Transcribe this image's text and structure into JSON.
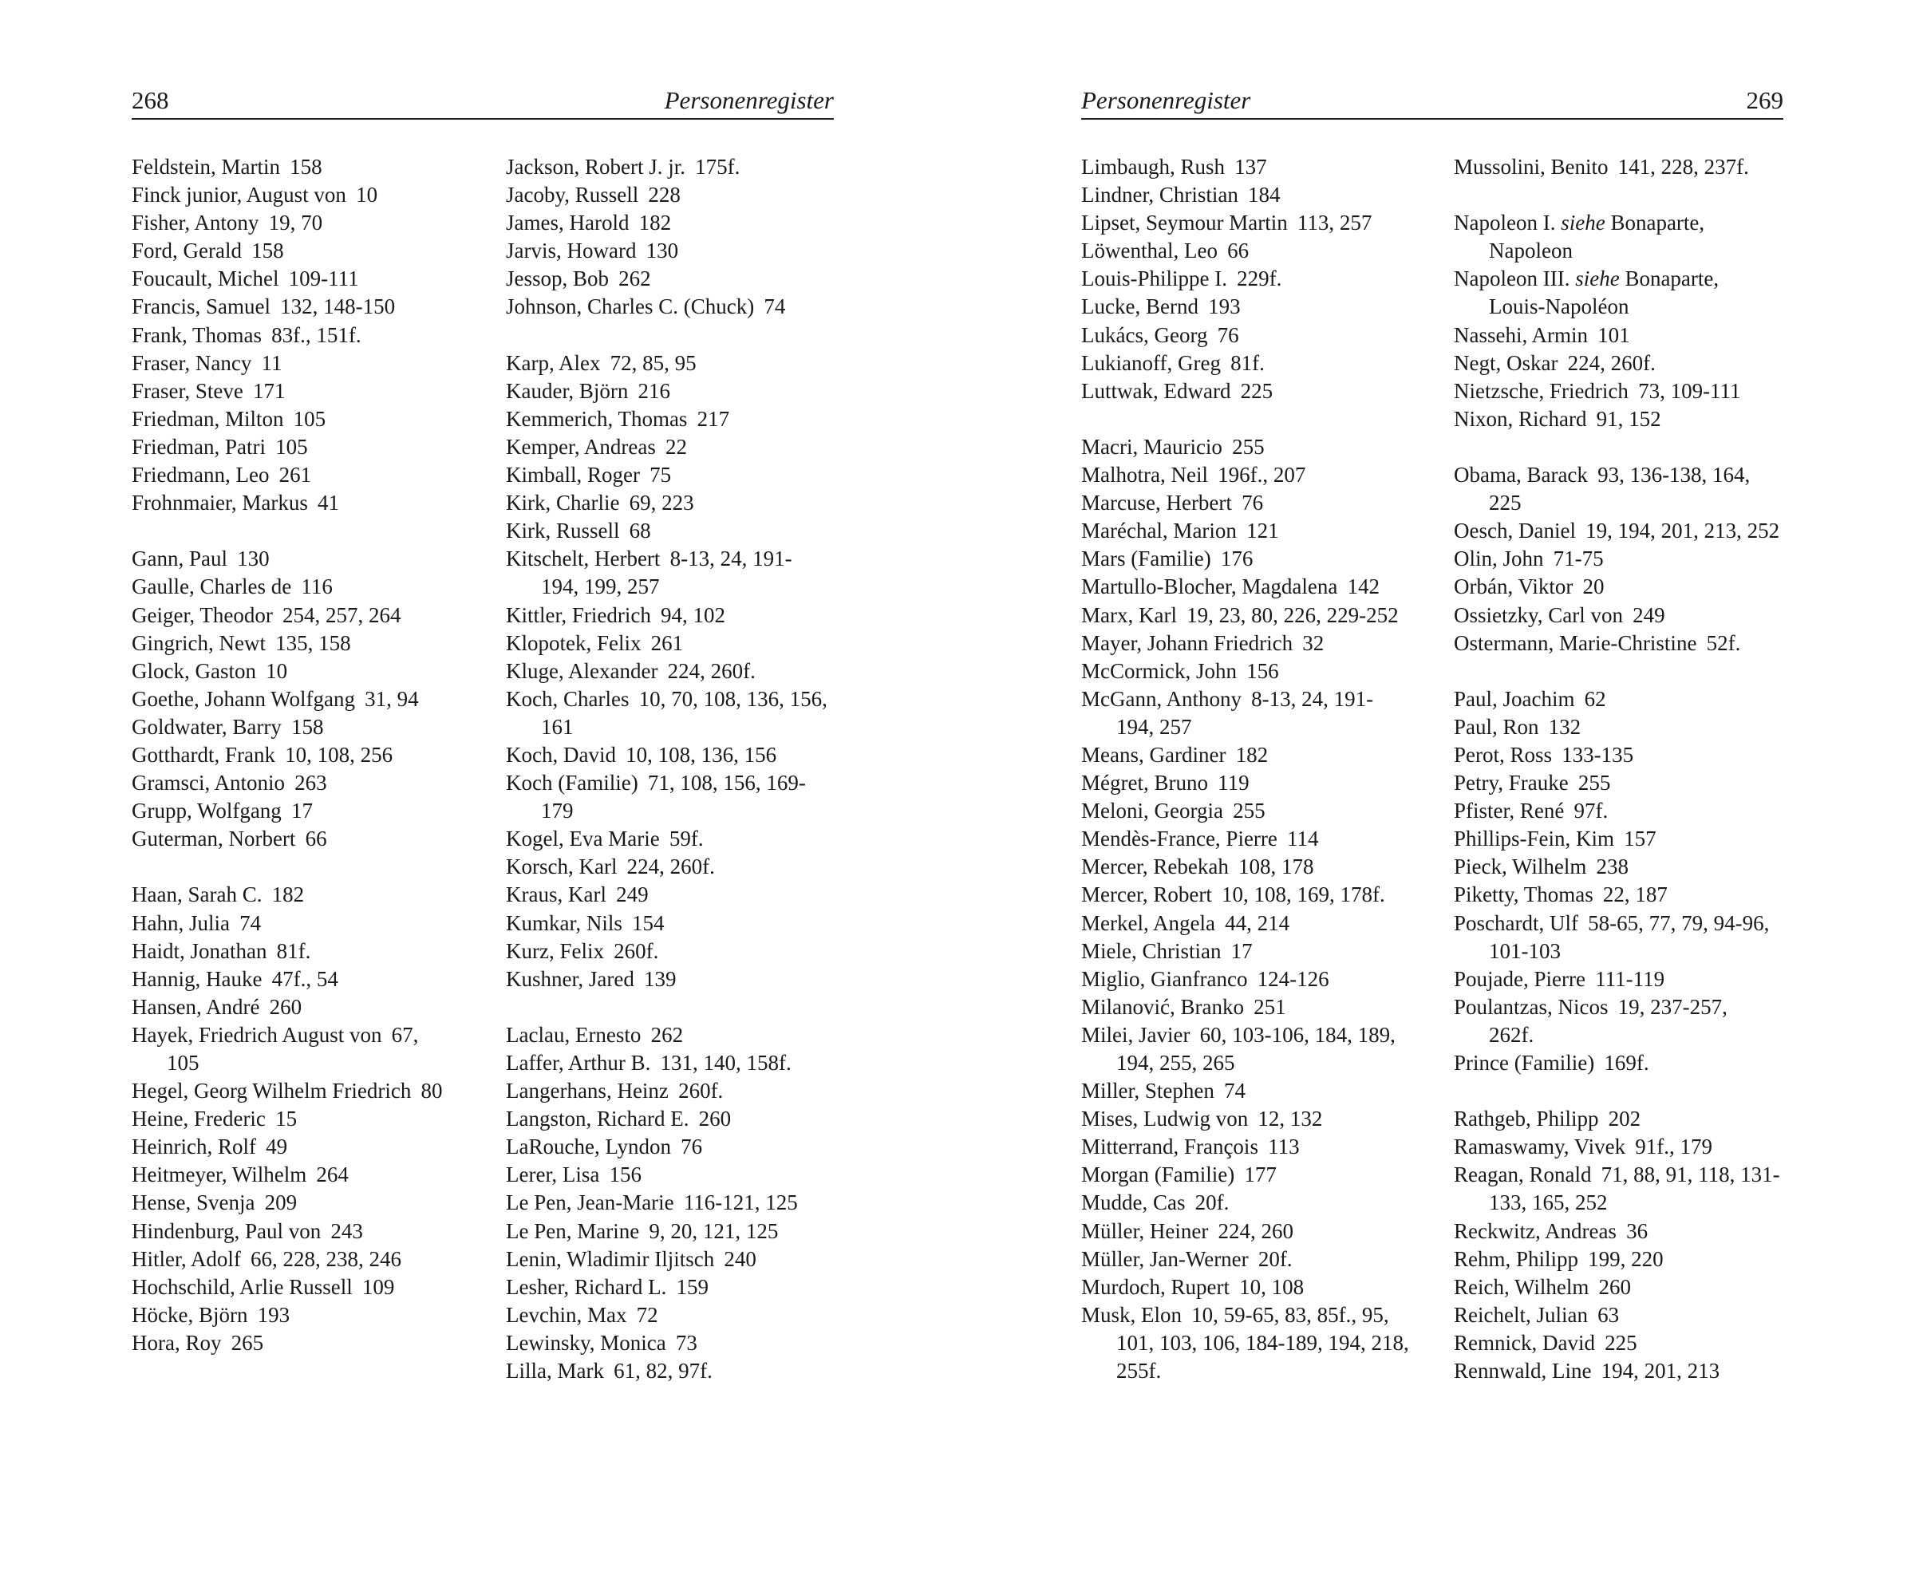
{
  "left_page": {
    "number": "268",
    "title": "Personenregister"
  },
  "right_page": {
    "number": "269",
    "title": "Personenregister"
  },
  "columns": [
    [
      [
        {
          "name": "Feldstein, Martin",
          "pages": "158"
        },
        {
          "name": "Finck junior, August von",
          "pages": "10"
        },
        {
          "name": "Fisher, Antony",
          "pages": "19, 70"
        },
        {
          "name": "Ford, Gerald",
          "pages": "158"
        },
        {
          "name": "Foucault, Michel",
          "pages": "109-111"
        },
        {
          "name": "Francis, Samuel",
          "pages": "132, 148-150"
        },
        {
          "name": "Frank, Thomas",
          "pages": "83f., 151f."
        },
        {
          "name": "Fraser, Nancy",
          "pages": "11"
        },
        {
          "name": "Fraser, Steve",
          "pages": "171"
        },
        {
          "name": "Friedman, Milton",
          "pages": "105"
        },
        {
          "name": "Friedman, Patri",
          "pages": "105"
        },
        {
          "name": "Friedmann, Leo",
          "pages": "261"
        },
        {
          "name": "Frohnmaier, Markus",
          "pages": "41"
        }
      ],
      [
        {
          "name": "Gann, Paul",
          "pages": "130"
        },
        {
          "name": "Gaulle, Charles de",
          "pages": "116"
        },
        {
          "name": "Geiger, Theodor",
          "pages": "254, 257, 264"
        },
        {
          "name": "Gingrich, Newt",
          "pages": "135, 158"
        },
        {
          "name": "Glock, Gaston",
          "pages": "10"
        },
        {
          "name": "Goethe, Johann Wolfgang",
          "pages": "31, 94"
        },
        {
          "name": "Goldwater, Barry",
          "pages": "158"
        },
        {
          "name": "Gotthardt, Frank",
          "pages": "10, 108, 256"
        },
        {
          "name": "Gramsci, Antonio",
          "pages": "263"
        },
        {
          "name": "Grupp, Wolfgang",
          "pages": "17"
        },
        {
          "name": "Guterman, Norbert",
          "pages": "66"
        }
      ],
      [
        {
          "name": "Haan, Sarah C.",
          "pages": "182"
        },
        {
          "name": "Hahn, Julia",
          "pages": "74"
        },
        {
          "name": "Haidt, Jonathan",
          "pages": "81f."
        },
        {
          "name": "Hannig, Hauke",
          "pages": "47f., 54"
        },
        {
          "name": "Hansen, André",
          "pages": "260"
        },
        {
          "name": "Hayek, Friedrich August von",
          "pages": "67,",
          "cont": "105"
        },
        {
          "name": "Hegel, Georg Wilhelm Friedrich",
          "pages": "80"
        },
        {
          "name": "Heine, Frederic",
          "pages": "15"
        },
        {
          "name": "Heinrich, Rolf",
          "pages": "49"
        },
        {
          "name": "Heitmeyer, Wilhelm",
          "pages": "264"
        },
        {
          "name": "Hense, Svenja",
          "pages": "209"
        },
        {
          "name": "Hindenburg, Paul von",
          "pages": "243"
        },
        {
          "name": "Hitler, Adolf",
          "pages": "66, 228, 238, 246"
        },
        {
          "name": "Hochschild, Arlie Russell",
          "pages": "109"
        },
        {
          "name": "Höcke, Björn",
          "pages": "193"
        },
        {
          "name": "Hora, Roy",
          "pages": "265"
        }
      ]
    ],
    [
      [
        {
          "name": "Jackson, Robert J. jr.",
          "pages": "175f."
        },
        {
          "name": "Jacoby, Russell",
          "pages": "228"
        },
        {
          "name": "James, Harold",
          "pages": "182"
        },
        {
          "name": "Jarvis, Howard",
          "pages": "130"
        },
        {
          "name": "Jessop, Bob",
          "pages": "262"
        },
        {
          "name": "Johnson, Charles C. (Chuck)",
          "pages": "74"
        }
      ],
      [
        {
          "name": "Karp, Alex",
          "pages": "72, 85, 95"
        },
        {
          "name": "Kauder, Björn",
          "pages": "216"
        },
        {
          "name": "Kemmerich, Thomas",
          "pages": "217"
        },
        {
          "name": "Kemper, Andreas",
          "pages": "22"
        },
        {
          "name": "Kimball, Roger",
          "pages": "75"
        },
        {
          "name": "Kirk, Charlie",
          "pages": "69, 223"
        },
        {
          "name": "Kirk, Russell",
          "pages": "68"
        },
        {
          "name": "Kitschelt, Herbert",
          "pages": "8-13, 24, 191-",
          "cont": "194, 199, 257"
        },
        {
          "name": "Kittler, Friedrich",
          "pages": "94, 102"
        },
        {
          "name": "Klopotek, Felix",
          "pages": "261"
        },
        {
          "name": "Kluge, Alexander",
          "pages": "224, 260f."
        },
        {
          "name": "Koch, Charles",
          "pages": "10, 70, 108, 136, 156,",
          "cont": "161"
        },
        {
          "name": "Koch, David",
          "pages": "10, 108, 136, 156"
        },
        {
          "name": "Koch (Familie)",
          "pages": "71, 108, 156, 169-",
          "cont": "179"
        },
        {
          "name": "Kogel, Eva Marie",
          "pages": "59f."
        },
        {
          "name": "Korsch, Karl",
          "pages": "224, 260f."
        },
        {
          "name": "Kraus, Karl",
          "pages": "249"
        },
        {
          "name": "Kumkar, Nils",
          "pages": "154"
        },
        {
          "name": "Kurz, Felix",
          "pages": "260f."
        },
        {
          "name": "Kushner, Jared",
          "pages": "139"
        }
      ],
      [
        {
          "name": "Laclau, Ernesto",
          "pages": "262"
        },
        {
          "name": "Laffer, Arthur B.",
          "pages": "131, 140, 158f."
        },
        {
          "name": "Langerhans, Heinz",
          "pages": "260f."
        },
        {
          "name": "Langston, Richard E.",
          "pages": "260"
        },
        {
          "name": "LaRouche, Lyndon",
          "pages": "76"
        },
        {
          "name": "Lerer, Lisa",
          "pages": "156"
        },
        {
          "name": "Le Pen, Jean-Marie",
          "pages": "116-121, 125"
        },
        {
          "name": "Le Pen, Marine",
          "pages": "9, 20, 121, 125"
        },
        {
          "name": "Lenin, Wladimir Iljitsch",
          "pages": "240"
        },
        {
          "name": "Lesher, Richard L.",
          "pages": "159"
        },
        {
          "name": "Levchin, Max",
          "pages": "72"
        },
        {
          "name": "Lewinsky, Monica",
          "pages": "73"
        },
        {
          "name": "Lilla, Mark",
          "pages": "61, 82, 97f."
        }
      ]
    ],
    [
      [
        {
          "name": "Limbaugh, Rush",
          "pages": "137"
        },
        {
          "name": "Lindner, Christian",
          "pages": "184"
        },
        {
          "name": "Lipset, Seymour Martin",
          "pages": "113, 257"
        },
        {
          "name": "Löwenthal, Leo",
          "pages": "66"
        },
        {
          "name": "Louis-Philippe I.",
          "pages": "229f."
        },
        {
          "name": "Lucke, Bernd",
          "pages": "193"
        },
        {
          "name": "Lukács, Georg",
          "pages": "76"
        },
        {
          "name": "Lukianoff, Greg",
          "pages": "81f."
        },
        {
          "name": "Luttwak, Edward",
          "pages": "225"
        }
      ],
      [
        {
          "name": "Macri, Mauricio",
          "pages": "255"
        },
        {
          "name": "Malhotra, Neil",
          "pages": "196f., 207"
        },
        {
          "name": "Marcuse, Herbert",
          "pages": "76"
        },
        {
          "name": "Maréchal, Marion",
          "pages": "121"
        },
        {
          "name": "Mars (Familie)",
          "pages": "176"
        },
        {
          "name": "Martullo-Blocher, Magdalena",
          "pages": "142"
        },
        {
          "name": "Marx, Karl",
          "pages": "19, 23, 80, 226, 229-252"
        },
        {
          "name": "Mayer, Johann Friedrich",
          "pages": "32"
        },
        {
          "name": "McCormick, John",
          "pages": "156"
        },
        {
          "name": "McGann, Anthony",
          "pages": "8-13, 24, 191-",
          "cont": "194, 257"
        },
        {
          "name": "Means, Gardiner",
          "pages": "182"
        },
        {
          "name": "Mégret, Bruno",
          "pages": "119"
        },
        {
          "name": "Meloni, Georgia",
          "pages": "255"
        },
        {
          "name": "Mendès-France, Pierre",
          "pages": "114"
        },
        {
          "name": "Mercer, Rebekah",
          "pages": "108, 178"
        },
        {
          "name": "Mercer, Robert",
          "pages": "10, 108, 169, 178f."
        },
        {
          "name": "Merkel, Angela",
          "pages": "44, 214"
        },
        {
          "name": "Miele, Christian",
          "pages": "17"
        },
        {
          "name": "Miglio, Gianfranco",
          "pages": "124-126"
        },
        {
          "name": "Milanović, Branko",
          "pages": "251"
        },
        {
          "name": "Milei, Javier",
          "pages": "60, 103-106, 184, 189,",
          "cont": "194, 255, 265"
        },
        {
          "name": "Miller, Stephen",
          "pages": "74"
        },
        {
          "name": "Mises, Ludwig von",
          "pages": "12, 132"
        },
        {
          "name": "Mitterrand, François",
          "pages": "113"
        },
        {
          "name": "Morgan (Familie)",
          "pages": "177"
        },
        {
          "name": "Mudde, Cas",
          "pages": "20f."
        },
        {
          "name": "Müller, Heiner",
          "pages": "224, 260"
        },
        {
          "name": "Müller, Jan-Werner",
          "pages": "20f."
        },
        {
          "name": "Murdoch, Rupert",
          "pages": "10, 108"
        },
        {
          "name": "Musk, Elon",
          "pages": "10, 59-65, 83, 85f., 95,",
          "cont": "101, 103, 106, 184-189, 194, 218,",
          "cont2": "255f."
        }
      ]
    ],
    [
      [
        {
          "name": "Mussolini, Benito",
          "pages": "141, 228, 237f."
        }
      ],
      [
        {
          "name": "Napoleon I.",
          "see": "siehe",
          "ref": "Bonaparte,",
          "cont": "Napoleon"
        },
        {
          "name": "Napoleon III.",
          "see": "siehe",
          "ref": "Bonaparte,",
          "cont": "Louis-Napoléon"
        },
        {
          "name": "Nassehi, Armin",
          "pages": "101"
        },
        {
          "name": "Negt, Oskar",
          "pages": "224, 260f."
        },
        {
          "name": "Nietzsche, Friedrich",
          "pages": "73, 109-111"
        },
        {
          "name": "Nixon, Richard",
          "pages": "91, 152"
        }
      ],
      [
        {
          "name": "Obama, Barack",
          "pages": "93, 136-138, 164,",
          "cont": "225"
        },
        {
          "name": "Oesch, Daniel",
          "pages": "19, 194, 201, 213, 252"
        },
        {
          "name": "Olin, John",
          "pages": "71-75"
        },
        {
          "name": "Orbán, Viktor",
          "pages": "20"
        },
        {
          "name": "Ossietzky, Carl von",
          "pages": "249"
        },
        {
          "name": "Ostermann, Marie-Christine",
          "pages": "52f."
        }
      ],
      [
        {
          "name": "Paul, Joachim",
          "pages": "62"
        },
        {
          "name": "Paul, Ron",
          "pages": "132"
        },
        {
          "name": "Perot, Ross",
          "pages": "133-135"
        },
        {
          "name": "Petry, Frauke",
          "pages": "255"
        },
        {
          "name": "Pfister, René",
          "pages": "97f."
        },
        {
          "name": "Phillips-Fein, Kim",
          "pages": "157"
        },
        {
          "name": "Pieck, Wilhelm",
          "pages": "238"
        },
        {
          "name": "Piketty, Thomas",
          "pages": "22, 187"
        },
        {
          "name": "Poschardt, Ulf",
          "pages": "58-65, 77, 79, 94-96,",
          "cont": "101-103"
        },
        {
          "name": "Poujade, Pierre",
          "pages": "111-119"
        },
        {
          "name": "Poulantzas, Nicos",
          "pages": "19, 237-257,",
          "cont": "262f."
        },
        {
          "name": "Prince (Familie)",
          "pages": "169f."
        }
      ],
      [
        {
          "name": "Rathgeb, Philipp",
          "pages": "202"
        },
        {
          "name": "Ramaswamy, Vivek",
          "pages": "91f., 179"
        },
        {
          "name": "Reagan, Ronald",
          "pages": "71, 88, 91, 118, 131-",
          "cont": "133, 165, 252"
        },
        {
          "name": "Reckwitz, Andreas",
          "pages": "36"
        },
        {
          "name": "Rehm, Philipp",
          "pages": "199, 220"
        },
        {
          "name": "Reich, Wilhelm",
          "pages": "260"
        },
        {
          "name": "Reichelt, Julian",
          "pages": "63"
        },
        {
          "name": "Remnick, David",
          "pages": "225"
        },
        {
          "name": "Rennwald, Line",
          "pages": "194, 201, 213"
        }
      ]
    ]
  ]
}
